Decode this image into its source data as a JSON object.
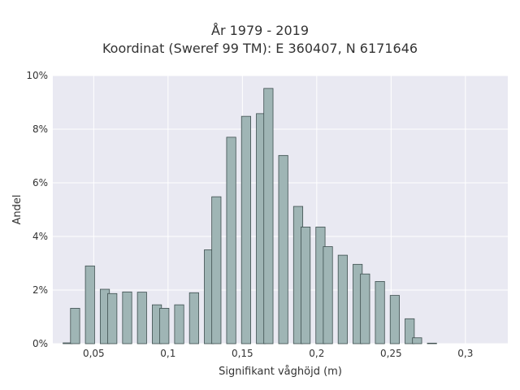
{
  "chart_data": {
    "type": "bar",
    "title": "År 1979 - 2019",
    "subtitle": "Koordinat (Sweref 99 TM): E 360407, N 6171646",
    "xlabel": "Signifikant våghöjd (m)",
    "ylabel": "Andel",
    "xlim": [
      0.0225,
      0.3285
    ],
    "ylim": [
      0,
      10
    ],
    "x_ticks": [
      0.05,
      0.1,
      0.15,
      0.2,
      0.25,
      0.3
    ],
    "x_tick_labels": [
      "0,05",
      "0,1",
      "0,15",
      "0,2",
      "0,25",
      "0,3"
    ],
    "y_ticks": [
      0,
      2,
      4,
      6,
      8,
      10
    ],
    "y_tick_labels": [
      "0%",
      "2%",
      "4%",
      "6%",
      "8%",
      "10%"
    ],
    "grid": true,
    "bar_color": "#9fb5b5",
    "bar_edge_color": "#3e4f4f",
    "background_color": "#e9e9f2",
    "x": [
      0.0325,
      0.0375,
      0.0475,
      0.0575,
      0.0625,
      0.0725,
      0.0825,
      0.0925,
      0.0975,
      0.1075,
      0.1175,
      0.1275,
      0.1325,
      0.1425,
      0.1525,
      0.1625,
      0.1675,
      0.1775,
      0.1875,
      0.1925,
      0.2025,
      0.2075,
      0.2175,
      0.2275,
      0.2325,
      0.2425,
      0.2525,
      0.2625,
      0.2675,
      0.2775,
      0.2875,
      0.2925,
      0.3025
    ],
    "values": [
      0.03,
      1.32,
      2.9,
      2.03,
      1.87,
      1.93,
      1.92,
      1.45,
      1.32,
      1.45,
      1.9,
      3.5,
      5.48,
      7.7,
      8.48,
      8.58,
      9.52,
      7.02,
      5.12,
      4.35,
      4.35,
      3.62,
      3.3,
      2.96,
      2.6,
      2.32,
      1.8,
      0.93,
      0.22,
      0.02,
      0.0,
      0.0,
      0.0
    ]
  }
}
